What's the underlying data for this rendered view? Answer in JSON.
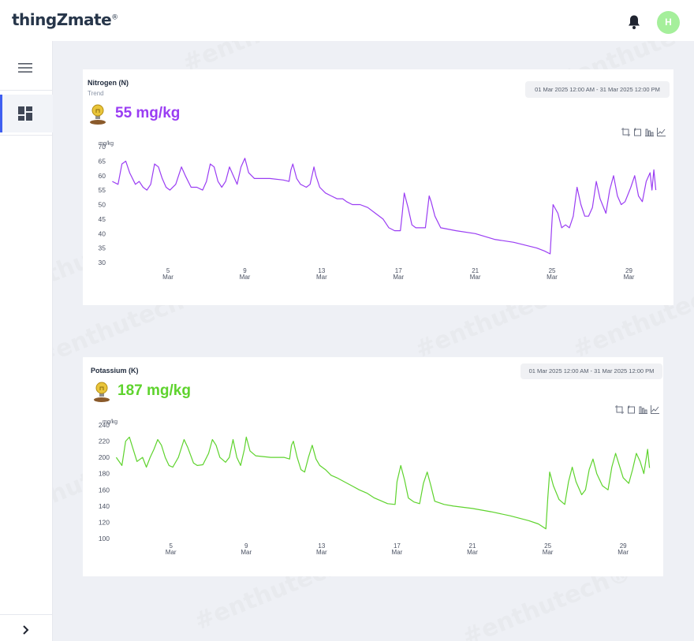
{
  "brand": {
    "name": "thingZmate",
    "mark": "®"
  },
  "header": {
    "avatar_initial": "H"
  },
  "sidebar": {
    "items": [
      {
        "icon": "dashboard-icon"
      }
    ]
  },
  "watermark": {
    "text": "#enthutech®"
  },
  "panels": [
    {
      "title": "Nitrogen (N)",
      "subtitle": "Trend",
      "date_range": "01 Mar 2025 12:00 AM - 31 Mar 2025 12:00 PM",
      "current_value": "55 mg/kg",
      "color": "#9a3df3",
      "tools": [
        "zoom-icon",
        "zoom-reset-icon",
        "bar-chart-icon",
        "line-chart-icon"
      ]
    },
    {
      "title": "Potassium (K)",
      "subtitle": "",
      "date_range": "01 Mar 2025 12:00 AM - 31 Mar 2025 12:00 PM",
      "current_value": "187 mg/kg",
      "color": "#5ed32d",
      "tools": [
        "zoom-icon",
        "zoom-reset-icon",
        "bar-chart-icon",
        "line-chart-icon"
      ]
    }
  ],
  "chart_data": [
    {
      "type": "line",
      "ylabel": "mg/kg",
      "ylim": [
        30,
        70
      ],
      "yticks": [
        30,
        35,
        40,
        45,
        50,
        55,
        60,
        65,
        70
      ],
      "xlim": [
        2,
        30.5
      ],
      "xticks": [
        {
          "day": 5,
          "label": "5"
        },
        {
          "day": 9,
          "label": "9"
        },
        {
          "day": 13,
          "label": "13"
        },
        {
          "day": 17,
          "label": "17"
        },
        {
          "day": 21,
          "label": "21"
        },
        {
          "day": 25,
          "label": "25"
        },
        {
          "day": 29,
          "label": "29"
        }
      ],
      "xtick_sublabel": "Mar",
      "series": [
        {
          "color": "#9a3df3",
          "points": [
            [
              2.1,
              58
            ],
            [
              2.4,
              57
            ],
            [
              2.6,
              64
            ],
            [
              2.8,
              65
            ],
            [
              3.0,
              61
            ],
            [
              3.3,
              57
            ],
            [
              3.5,
              58
            ],
            [
              3.7,
              56
            ],
            [
              3.9,
              55
            ],
            [
              4.1,
              57
            ],
            [
              4.3,
              64
            ],
            [
              4.5,
              63
            ],
            [
              4.7,
              59
            ],
            [
              4.9,
              56
            ],
            [
              5.1,
              55
            ],
            [
              5.4,
              57
            ],
            [
              5.7,
              63
            ],
            [
              5.9,
              60
            ],
            [
              6.2,
              56
            ],
            [
              6.5,
              56
            ],
            [
              6.8,
              55
            ],
            [
              7.0,
              58
            ],
            [
              7.2,
              64
            ],
            [
              7.4,
              63
            ],
            [
              7.6,
              58
            ],
            [
              7.8,
              56
            ],
            [
              8.0,
              58
            ],
            [
              8.2,
              63
            ],
            [
              8.4,
              60
            ],
            [
              8.6,
              57
            ],
            [
              8.8,
              63
            ],
            [
              9.0,
              66
            ],
            [
              9.2,
              61
            ],
            [
              9.5,
              59
            ],
            [
              10.3,
              59
            ],
            [
              11,
              58.5
            ],
            [
              11.3,
              58
            ],
            [
              11.4,
              62
            ],
            [
              11.5,
              64
            ],
            [
              11.7,
              59
            ],
            [
              11.9,
              57
            ],
            [
              12.2,
              56
            ],
            [
              12.4,
              57
            ],
            [
              12.6,
              63
            ],
            [
              12.7,
              60
            ],
            [
              12.9,
              56
            ],
            [
              13.2,
              54
            ],
            [
              13.5,
              53
            ],
            [
              13.8,
              52
            ],
            [
              14.1,
              52
            ],
            [
              14.3,
              51
            ],
            [
              14.6,
              50
            ],
            [
              15,
              50
            ],
            [
              15.4,
              49
            ],
            [
              15.8,
              47
            ],
            [
              16.2,
              45
            ],
            [
              16.5,
              42
            ],
            [
              16.8,
              41
            ],
            [
              17.1,
              41
            ],
            [
              17.2,
              47
            ],
            [
              17.3,
              54
            ],
            [
              17.5,
              49
            ],
            [
              17.7,
              43
            ],
            [
              17.9,
              42
            ],
            [
              18.1,
              42
            ],
            [
              18.4,
              42
            ],
            [
              18.6,
              53
            ],
            [
              18.7,
              51
            ],
            [
              18.9,
              46
            ],
            [
              19.2,
              42
            ],
            [
              20,
              41
            ],
            [
              21,
              40
            ],
            [
              22,
              38
            ],
            [
              23,
              37
            ],
            [
              23.6,
              36
            ],
            [
              24.2,
              35
            ],
            [
              24.6,
              34
            ],
            [
              24.9,
              33
            ],
            [
              25.0,
              45
            ],
            [
              25.05,
              50
            ],
            [
              25.3,
              47
            ],
            [
              25.5,
              42
            ],
            [
              25.7,
              43
            ],
            [
              25.9,
              42
            ],
            [
              26.1,
              46
            ],
            [
              26.3,
              56
            ],
            [
              26.5,
              50
            ],
            [
              26.7,
              46
            ],
            [
              26.9,
              46
            ],
            [
              27.1,
              49
            ],
            [
              27.3,
              58
            ],
            [
              27.5,
              52
            ],
            [
              27.8,
              47
            ],
            [
              28,
              55
            ],
            [
              28.2,
              60
            ],
            [
              28.4,
              53
            ],
            [
              28.6,
              50
            ],
            [
              28.8,
              51
            ],
            [
              29.1,
              56
            ],
            [
              29.3,
              60
            ],
            [
              29.5,
              53
            ],
            [
              29.7,
              51
            ],
            [
              29.9,
              58
            ],
            [
              30.1,
              61
            ],
            [
              30.2,
              55
            ],
            [
              30.3,
              62
            ],
            [
              30.4,
              55
            ]
          ]
        }
      ]
    },
    {
      "type": "line",
      "ylabel": "mg/kg",
      "ylim": [
        100,
        240
      ],
      "yticks": [
        100,
        120,
        140,
        160,
        180,
        200,
        220,
        240
      ],
      "xlim": [
        2,
        30.5
      ],
      "xticks": [
        {
          "day": 5,
          "label": "5"
        },
        {
          "day": 9,
          "label": "9"
        },
        {
          "day": 13,
          "label": "13"
        },
        {
          "day": 17,
          "label": "17"
        },
        {
          "day": 21,
          "label": "21"
        },
        {
          "day": 25,
          "label": "25"
        },
        {
          "day": 29,
          "label": "29"
        }
      ],
      "xtick_sublabel": "Mar",
      "series": [
        {
          "color": "#5ed32d",
          "points": [
            [
              2.1,
              200
            ],
            [
              2.4,
              190
            ],
            [
              2.6,
              220
            ],
            [
              2.8,
              225
            ],
            [
              3.0,
              210
            ],
            [
              3.2,
              195
            ],
            [
              3.5,
              200
            ],
            [
              3.7,
              188
            ],
            [
              3.9,
              200
            ],
            [
              4.1,
              210
            ],
            [
              4.3,
              222
            ],
            [
              4.5,
              215
            ],
            [
              4.7,
              200
            ],
            [
              4.9,
              190
            ],
            [
              5.1,
              188
            ],
            [
              5.4,
              200
            ],
            [
              5.7,
              222
            ],
            [
              5.9,
              212
            ],
            [
              6.2,
              193
            ],
            [
              6.4,
              190
            ],
            [
              6.7,
              191
            ],
            [
              7.0,
              205
            ],
            [
              7.2,
              222
            ],
            [
              7.4,
              215
            ],
            [
              7.6,
              200
            ],
            [
              7.9,
              194
            ],
            [
              8.1,
              200
            ],
            [
              8.3,
              222
            ],
            [
              8.5,
              200
            ],
            [
              8.7,
              190
            ],
            [
              8.9,
              210
            ],
            [
              9.0,
              225
            ],
            [
              9.2,
              208
            ],
            [
              9.5,
              202
            ],
            [
              10.3,
              200
            ],
            [
              11,
              200
            ],
            [
              11.3,
              198
            ],
            [
              11.4,
              215
            ],
            [
              11.5,
              220
            ],
            [
              11.7,
              200
            ],
            [
              11.9,
              185
            ],
            [
              12.1,
              182
            ],
            [
              12.3,
              200
            ],
            [
              12.5,
              215
            ],
            [
              12.7,
              198
            ],
            [
              12.9,
              190
            ],
            [
              13.2,
              185
            ],
            [
              13.5,
              178
            ],
            [
              13.8,
              175
            ],
            [
              14.2,
              170
            ],
            [
              14.6,
              165
            ],
            [
              15,
              160
            ],
            [
              15.4,
              156
            ],
            [
              15.8,
              150
            ],
            [
              16.2,
              146
            ],
            [
              16.5,
              143
            ],
            [
              16.9,
              142
            ],
            [
              17.0,
              170
            ],
            [
              17.2,
              190
            ],
            [
              17.4,
              172
            ],
            [
              17.6,
              150
            ],
            [
              17.9,
              145
            ],
            [
              18.2,
              143
            ],
            [
              18.4,
              168
            ],
            [
              18.6,
              182
            ],
            [
              18.8,
              165
            ],
            [
              19.0,
              146
            ],
            [
              19.5,
              142
            ],
            [
              20,
              140
            ],
            [
              21,
              137
            ],
            [
              22,
              133
            ],
            [
              23,
              128
            ],
            [
              24,
              122
            ],
            [
              24.5,
              118
            ],
            [
              24.9,
              112
            ],
            [
              25.0,
              150
            ],
            [
              25.1,
              182
            ],
            [
              25.3,
              165
            ],
            [
              25.6,
              148
            ],
            [
              25.9,
              142
            ],
            [
              26.1,
              170
            ],
            [
              26.3,
              188
            ],
            [
              26.5,
              170
            ],
            [
              26.8,
              154
            ],
            [
              27.0,
              160
            ],
            [
              27.2,
              185
            ],
            [
              27.4,
              198
            ],
            [
              27.6,
              180
            ],
            [
              27.9,
              165
            ],
            [
              28.2,
              160
            ],
            [
              28.4,
              188
            ],
            [
              28.6,
              205
            ],
            [
              28.8,
              190
            ],
            [
              29.0,
              175
            ],
            [
              29.3,
              168
            ],
            [
              29.5,
              185
            ],
            [
              29.7,
              205
            ],
            [
              29.9,
              195
            ],
            [
              30.1,
              180
            ],
            [
              30.3,
              210
            ],
            [
              30.4,
              187
            ]
          ]
        }
      ]
    }
  ]
}
